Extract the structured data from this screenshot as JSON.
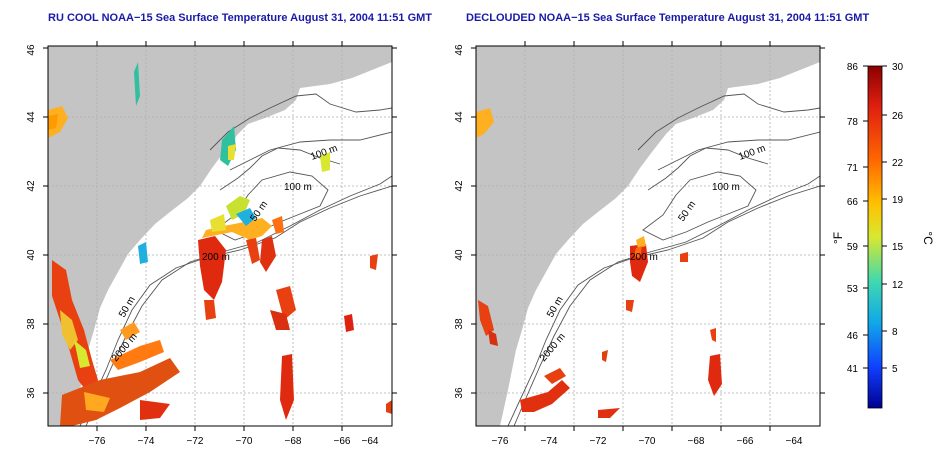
{
  "panels": [
    {
      "title": "RU COOL NOAA−15 Sea Surface Temperature August 31, 2004 11:51 GMT",
      "contour_labels": [
        "100 m",
        "100 m",
        "50 m",
        "200 m",
        "50 m",
        "2000 m"
      ]
    },
    {
      "title": "DECLOUDED NOAA−15 Sea Surface Temperature August 31, 2004 11:51 GMT",
      "contour_labels": [
        "100 m",
        "100 m",
        "50 m",
        "200 m",
        "50 m",
        "2000 m"
      ]
    }
  ],
  "axes": {
    "x_ticks": [
      "−76",
      "−74",
      "−72",
      "−70",
      "−68",
      "−66",
      "−64"
    ],
    "y_ticks": [
      "36",
      "38",
      "40",
      "42",
      "44",
      "46"
    ]
  },
  "colorbar": {
    "unit_left": "°F",
    "unit_right": "°C",
    "f_ticks": [
      "86",
      "78",
      "71",
      "66",
      "59",
      "53",
      "46",
      "41"
    ],
    "c_ticks": [
      "30",
      "26",
      "22",
      "19",
      "15",
      "12",
      "8",
      "5"
    ],
    "colors": [
      "#8b0000",
      "#e02010",
      "#ff6a00",
      "#ffc000",
      "#d8e830",
      "#40d8b0",
      "#10a8e8",
      "#1040ff",
      "#000090"
    ]
  },
  "colors": {
    "land": "#c4c4c4",
    "title": "#1a1aa8",
    "grid": "#b0b0b0"
  }
}
